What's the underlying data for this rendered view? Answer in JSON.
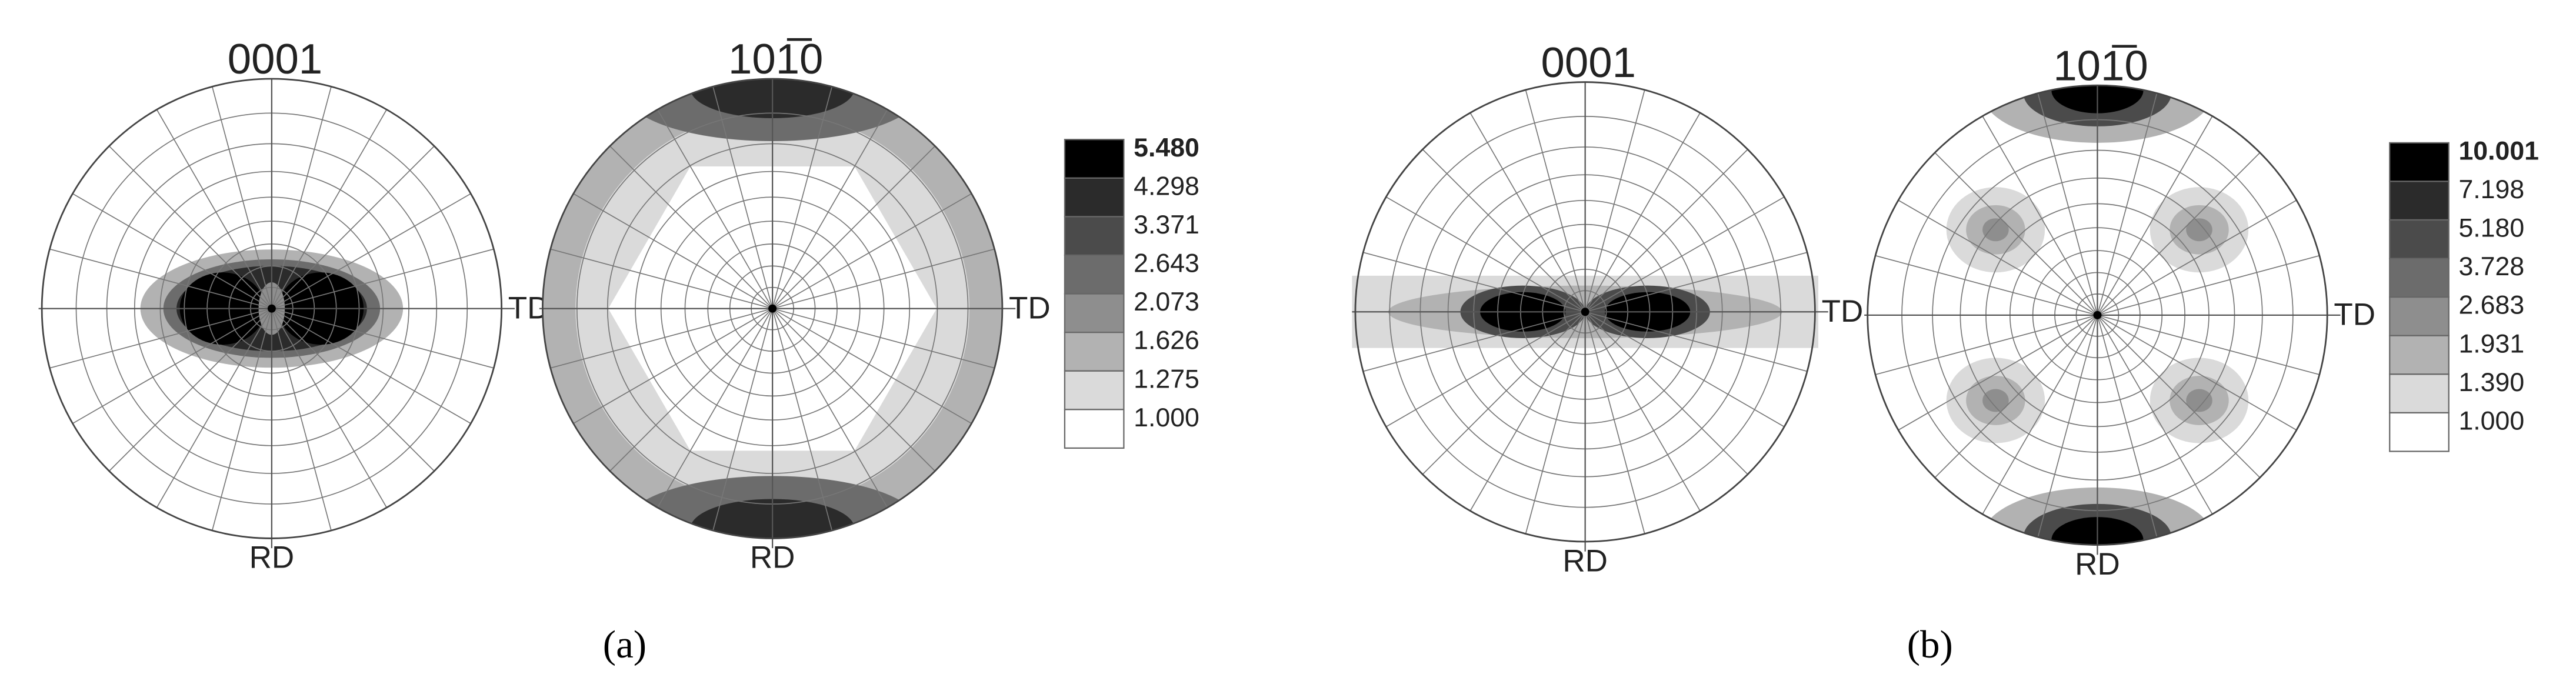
{
  "panels": [
    {
      "caption": "(a)",
      "figures": [
        {
          "title": "0001",
          "right_label": "TD",
          "bottom_label": "RD"
        },
        {
          "title": "101̅0",
          "right_label": "TD",
          "bottom_label": "RD"
        }
      ],
      "legend": [
        "5.480",
        "4.298",
        "3.371",
        "2.643",
        "2.073",
        "1.626",
        "1.275",
        "1.000"
      ]
    },
    {
      "caption": "(b)",
      "figures": [
        {
          "title": "0001",
          "right_label": "TD",
          "bottom_label": "RD"
        },
        {
          "title": "101̅0",
          "right_label": "TD",
          "bottom_label": "RD"
        }
      ],
      "legend": [
        "10.001",
        "7.198",
        "5.180",
        "3.728",
        "2.683",
        "1.931",
        "1.390",
        "1.000"
      ]
    }
  ]
}
